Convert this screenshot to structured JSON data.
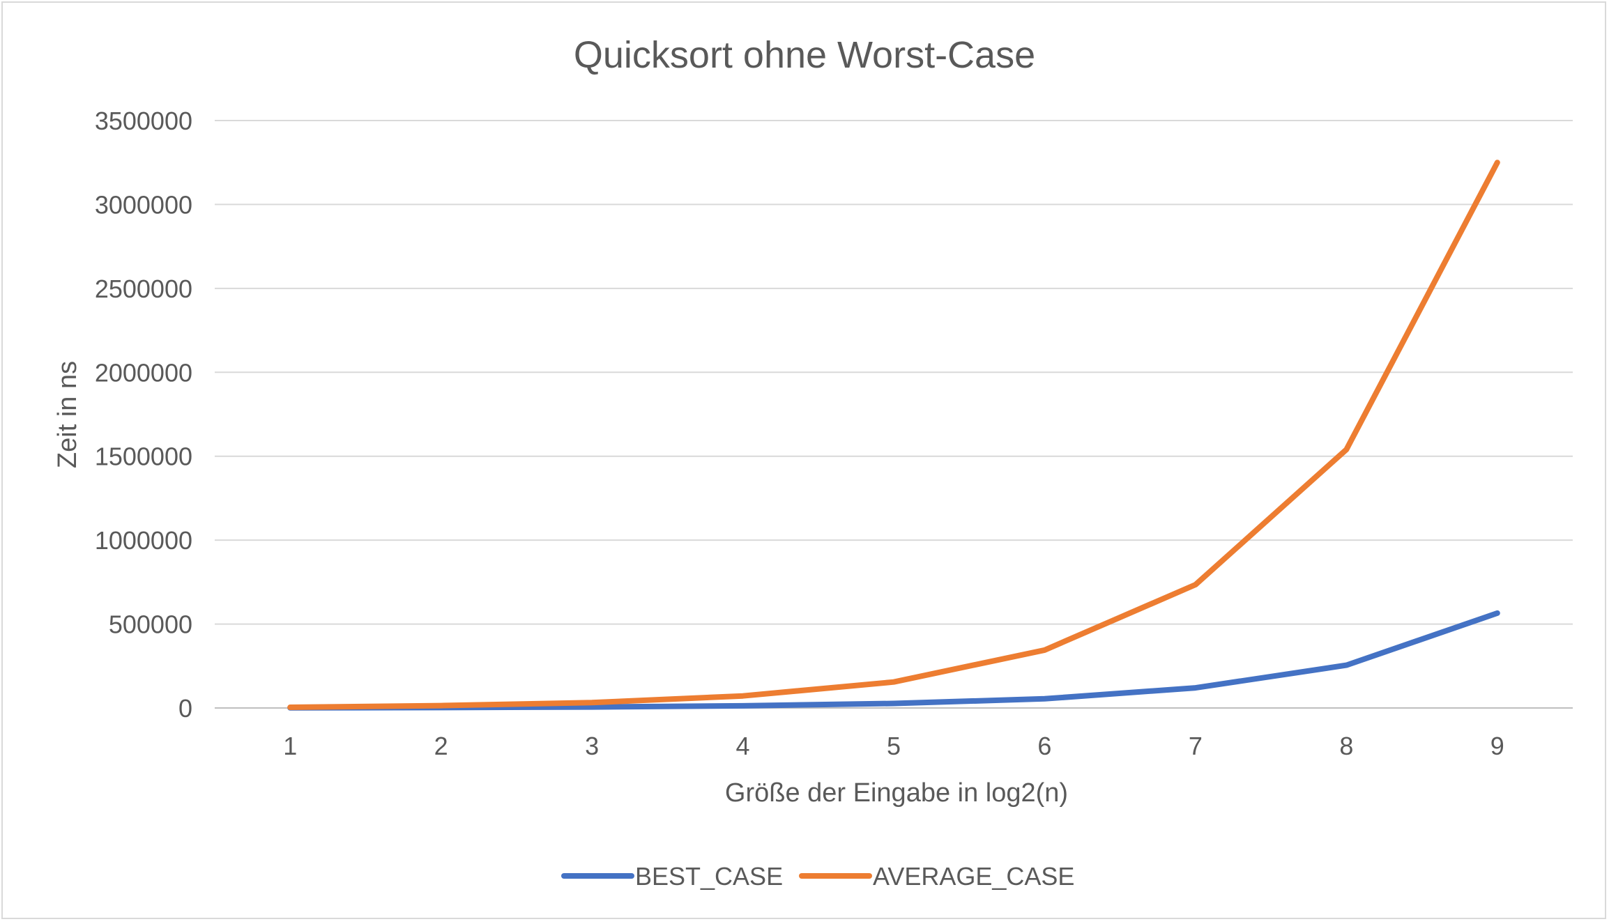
{
  "chart_data": {
    "type": "line",
    "title": "Quicksort ohne Worst-Case",
    "xlabel": "Größe der Eingabe in log2(n)",
    "ylabel": "Zeit in ns",
    "x": [
      1,
      2,
      3,
      4,
      5,
      6,
      7,
      8,
      9
    ],
    "ylim": [
      0,
      3500000
    ],
    "yticks": [
      0,
      500000,
      1000000,
      1500000,
      2000000,
      2500000,
      3000000,
      3500000
    ],
    "grid": true,
    "legend_position": "bottom",
    "series": [
      {
        "name": "BEST_CASE",
        "color": "#4472C4",
        "values": [
          1000,
          2500,
          6000,
          13000,
          27000,
          55000,
          120000,
          255000,
          565000
        ]
      },
      {
        "name": "AVERAGE_CASE",
        "color": "#ED7D31",
        "values": [
          4000,
          14000,
          32000,
          72000,
          155000,
          345000,
          735000,
          1540000,
          3250000
        ]
      }
    ]
  }
}
